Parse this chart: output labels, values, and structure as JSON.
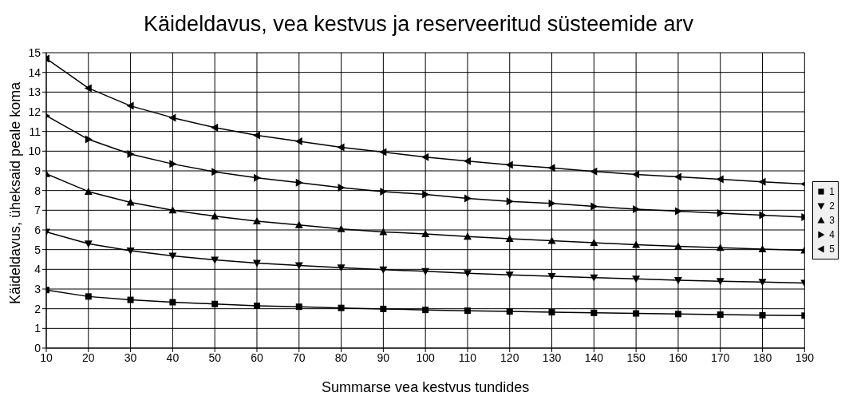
{
  "chart_data": {
    "type": "line",
    "title": "Käideldavus, vea kestvus ja reserveeritud süsteemide arv",
    "xlabel": "Summarse vea kestvus tundides",
    "ylabel": "Käideldavus, üheksaid peale koma",
    "x": [
      10,
      20,
      30,
      40,
      50,
      60,
      70,
      80,
      90,
      100,
      110,
      120,
      130,
      140,
      150,
      160,
      170,
      180,
      190
    ],
    "series": [
      {
        "name": "1",
        "color": "#000000",
        "marker": "square",
        "values": [
          2.95,
          2.62,
          2.45,
          2.33,
          2.24,
          2.15,
          2.1,
          2.04,
          1.99,
          1.94,
          1.9,
          1.86,
          1.82,
          1.79,
          1.76,
          1.73,
          1.7,
          1.67,
          1.65
        ]
      },
      {
        "name": "2",
        "color": "#000000",
        "marker": "triangle-down",
        "values": [
          5.9,
          5.3,
          4.95,
          4.68,
          4.48,
          4.32,
          4.2,
          4.08,
          3.98,
          3.9,
          3.8,
          3.72,
          3.65,
          3.58,
          3.52,
          3.45,
          3.4,
          3.35,
          3.3
        ]
      },
      {
        "name": "3",
        "color": "#000000",
        "marker": "triangle",
        "values": [
          8.85,
          7.95,
          7.4,
          7.0,
          6.7,
          6.45,
          6.25,
          6.05,
          5.9,
          5.8,
          5.67,
          5.55,
          5.45,
          5.35,
          5.25,
          5.17,
          5.1,
          5.03,
          4.97
        ]
      },
      {
        "name": "4",
        "color": "#000000",
        "marker": "triangle-right",
        "values": [
          11.8,
          10.6,
          9.85,
          9.35,
          8.95,
          8.65,
          8.4,
          8.15,
          7.95,
          7.8,
          7.6,
          7.45,
          7.35,
          7.2,
          7.05,
          6.95,
          6.85,
          6.75,
          6.65
        ]
      },
      {
        "name": "5",
        "color": "#000000",
        "marker": "triangle-left",
        "values": [
          14.7,
          13.2,
          12.3,
          11.7,
          11.2,
          10.8,
          10.5,
          10.2,
          9.95,
          9.7,
          9.5,
          9.3,
          9.15,
          8.97,
          8.82,
          8.7,
          8.57,
          8.44,
          8.33
        ]
      }
    ],
    "xlim": [
      10,
      190
    ],
    "xticks": [
      10,
      20,
      30,
      40,
      50,
      60,
      70,
      80,
      90,
      100,
      110,
      120,
      130,
      140,
      150,
      160,
      170,
      180,
      190
    ],
    "ylim": [
      0,
      15
    ],
    "yticks": [
      0,
      1,
      2,
      3,
      4,
      5,
      6,
      7,
      8,
      9,
      10,
      11,
      12,
      13,
      14,
      15
    ],
    "grid": true,
    "legend": "right",
    "line_style": "solid"
  }
}
